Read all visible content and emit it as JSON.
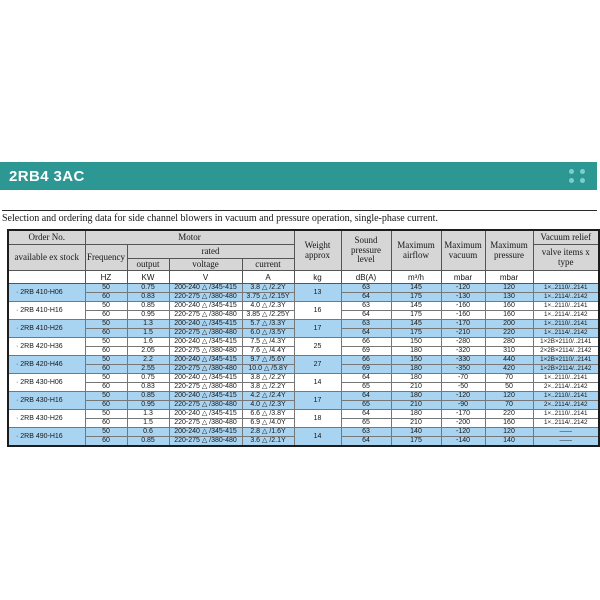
{
  "header": {
    "title": "2RB4 3AC",
    "accent_color": "#2d9793",
    "dots_color": "#7cd0cc"
  },
  "intro": {
    "text": "Selection and ordering data for side channel blowers in vacuum and pressure operation, single-phase current."
  },
  "table": {
    "bullet": "·",
    "highlight_color": "#a9d4f1",
    "headers": {
      "order_no": "Order No.",
      "available": "available ex stock",
      "motor": "Motor",
      "frequency": "Frequency",
      "rated": "rated",
      "output": "output",
      "voltage": "voltage",
      "current": "current",
      "weight": "Weight approx",
      "sound": "Sound pressure level",
      "airflow": "Maximum airflow",
      "vacuum": "Maximum vacuum",
      "pressure": "Maximum pressure",
      "vacuum_relief": "Vacuum relief",
      "valve": "valve items x type"
    },
    "units": {
      "frequency": "HZ",
      "output": "KW",
      "voltage": "V",
      "current": "A",
      "weight": "kg",
      "sound": "dB(A)",
      "airflow": "m³/h",
      "vacuum": "mbar",
      "pressure": "mbar"
    },
    "rows": [
      {
        "model": "2RB 410-H06",
        "highlight": true,
        "weight": "13",
        "sub": [
          {
            "hz": "50",
            "kw": "0.75",
            "v": "200-240 △ /345-415",
            "a": "3.8 △ /2.2Y",
            "db": "63",
            "m3h": "145",
            "vac": "-120",
            "pres": "120",
            "valve": "1×..2110/..2141"
          },
          {
            "hz": "60",
            "kw": "0.83",
            "v": "220-275 △ /380-480",
            "a": "3.75 △ /2.15Y",
            "db": "64",
            "m3h": "175",
            "vac": "-130",
            "pres": "130",
            "valve": "1×..2114/..2142"
          }
        ]
      },
      {
        "model": "2RB 410-H16",
        "highlight": false,
        "weight": "16",
        "sub": [
          {
            "hz": "50",
            "kw": "0.85",
            "v": "200-240 △ /345-415",
            "a": "4.0 △ /2.3Y",
            "db": "63",
            "m3h": "145",
            "vac": "-160",
            "pres": "160",
            "valve": "1×..2110/..2141"
          },
          {
            "hz": "60",
            "kw": "0.95",
            "v": "220-275 △ /380-480",
            "a": "3.85 △ /2.25Y",
            "db": "64",
            "m3h": "175",
            "vac": "-160",
            "pres": "160",
            "valve": "1×..2114/..2142"
          }
        ]
      },
      {
        "model": "2RB 410-H26",
        "highlight": true,
        "weight": "17",
        "sub": [
          {
            "hz": "50",
            "kw": "1.3",
            "v": "200-240 △ /345-415",
            "a": "5.7 △ /3.3Y",
            "db": "63",
            "m3h": "145",
            "vac": "-170",
            "pres": "200",
            "valve": "1×..2110/..2141"
          },
          {
            "hz": "60",
            "kw": "1.5",
            "v": "220-275 △ /380-480",
            "a": "6.0 △ /3.5Y",
            "db": "64",
            "m3h": "175",
            "vac": "-210",
            "pres": "220",
            "valve": "1×..2114/..2142"
          }
        ]
      },
      {
        "model": "2RB 420-H36",
        "highlight": false,
        "weight": "25",
        "sub": [
          {
            "hz": "50",
            "kw": "1.6",
            "v": "200-240 △ /345-415",
            "a": "7.5 △ /4.3Y",
            "db": "66",
            "m3h": "150",
            "vac": "-280",
            "pres": "280",
            "valve": "1×2B×2110/..2141"
          },
          {
            "hz": "60",
            "kw": "2.05",
            "v": "220-275 △ /380-480",
            "a": "7.6 △ /4.4Y",
            "db": "69",
            "m3h": "180",
            "vac": "-320",
            "pres": "310",
            "valve": "2×2B×2114/..2142"
          }
        ]
      },
      {
        "model": "2RB 420-H46",
        "highlight": true,
        "weight": "27",
        "sub": [
          {
            "hz": "50",
            "kw": "2.2",
            "v": "200-240 △ /345-415",
            "a": "9.7 △ /5.6Y",
            "db": "66",
            "m3h": "150",
            "vac": "-330",
            "pres": "440",
            "valve": "1×2B×2110/..2141"
          },
          {
            "hz": "60",
            "kw": "2.55",
            "v": "220-275 △ /380-480",
            "a": "10.0 △ /5.8Y",
            "db": "69",
            "m3h": "180",
            "vac": "-350",
            "pres": "420",
            "valve": "1×2B×2114/..2142"
          }
        ]
      },
      {
        "model": "2RB 430-H06",
        "highlight": false,
        "weight": "14",
        "sub": [
          {
            "hz": "50",
            "kw": "0.75",
            "v": "200-240 △ /345-415",
            "a": "3.8 △ /2.2Y",
            "db": "64",
            "m3h": "180",
            "vac": "-70",
            "pres": "70",
            "valve": "1×..2110/..2141"
          },
          {
            "hz": "60",
            "kw": "0.83",
            "v": "220-275 △ /380-480",
            "a": "3.8 △ /2.2Y",
            "db": "65",
            "m3h": "210",
            "vac": "-50",
            "pres": "50",
            "valve": "2×..2114/..2142"
          }
        ]
      },
      {
        "model": "2RB 430-H16",
        "highlight": true,
        "weight": "17",
        "sub": [
          {
            "hz": "50",
            "kw": "0.85",
            "v": "200-240 △ /345-415",
            "a": "4.2 △ /2.4Y",
            "db": "64",
            "m3h": "180",
            "vac": "-120",
            "pres": "120",
            "valve": "1×..2110/..2141"
          },
          {
            "hz": "60",
            "kw": "0.95",
            "v": "220-275 △ /380-480",
            "a": "4.0 △ /2.3Y",
            "db": "65",
            "m3h": "210",
            "vac": "-90",
            "pres": "70",
            "valve": "2×..2114/..2142"
          }
        ]
      },
      {
        "model": "2RB 430-H26",
        "highlight": false,
        "weight": "18",
        "sub": [
          {
            "hz": "50",
            "kw": "1.3",
            "v": "200-240 △ /345-415",
            "a": "6.6 △ /3.8Y",
            "db": "64",
            "m3h": "180",
            "vac": "-170",
            "pres": "220",
            "valve": "1×..2110/..2141"
          },
          {
            "hz": "60",
            "kw": "1.5",
            "v": "220-275 △ /380-480",
            "a": "6.9 △ /4.0Y",
            "db": "65",
            "m3h": "210",
            "vac": "-200",
            "pres": "160",
            "valve": "1×..2114/..2142"
          }
        ]
      },
      {
        "model": "2RB 490-H16",
        "highlight": true,
        "weight": "14",
        "sub": [
          {
            "hz": "50",
            "kw": "0.6",
            "v": "200-240 △ /345-415",
            "a": "2.8 △ /1.6Y",
            "db": "63",
            "m3h": "140",
            "vac": "-120",
            "pres": "120",
            "valve": "——"
          },
          {
            "hz": "60",
            "kw": "0.85",
            "v": "220-275 △ /380-480",
            "a": "3.6 △ /2.1Y",
            "db": "64",
            "m3h": "175",
            "vac": "-140",
            "pres": "140",
            "valve": "——"
          }
        ]
      }
    ]
  }
}
